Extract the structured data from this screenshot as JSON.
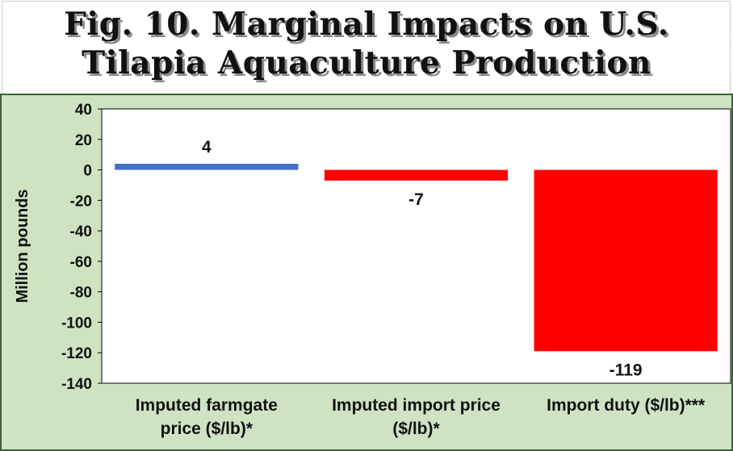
{
  "title": {
    "line1": "Fig. 10. Marginal Impacts on U.S.",
    "line2": "Tilapia Aquaculture Production"
  },
  "colors": {
    "positive_bar": "#4472c4",
    "negative_bar": "#ff0000",
    "chart_background": "#cfe3c3",
    "plot_background": "#ffffff"
  },
  "chart_data": {
    "type": "bar",
    "title": "Fig. 10. Marginal Impacts on U.S. Tilapia Aquaculture Production",
    "ylabel": "Million pounds",
    "xlabel": "",
    "ylim": [
      -140,
      40
    ],
    "yticks": [
      40,
      20,
      0,
      -20,
      -40,
      -60,
      -80,
      -100,
      -120,
      -140
    ],
    "grid": false,
    "legend": "none",
    "categories": [
      {
        "line1": "Imputed farmgate",
        "line2": "price ($/lb)*"
      },
      {
        "line1": "Imputed import price",
        "line2": "($/lb)*"
      },
      {
        "line1": "Import duty ($/lb)***",
        "line2": ""
      }
    ],
    "values": [
      4,
      -7,
      -119
    ],
    "data_labels": [
      "4",
      "-7",
      "-119"
    ]
  }
}
